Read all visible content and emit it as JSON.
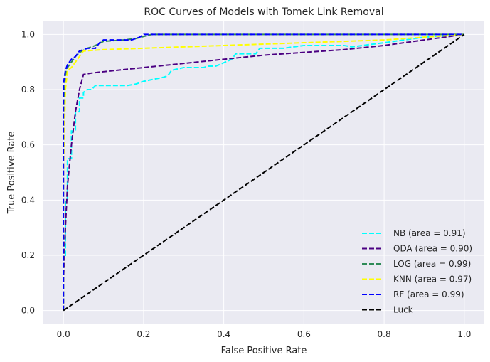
{
  "chart_data": {
    "type": "line",
    "title": "ROC Curves of Models with Tomek Link Removal",
    "xlabel": "False Positive Rate",
    "ylabel": "True Positive Rate",
    "xlim": [
      -0.05,
      1.05
    ],
    "ylim": [
      -0.05,
      1.05
    ],
    "xticks": [
      0.0,
      0.2,
      0.4,
      0.6,
      0.8,
      1.0
    ],
    "yticks": [
      0.0,
      0.2,
      0.4,
      0.6,
      0.8,
      1.0
    ],
    "xtick_labels": [
      "0.0",
      "0.2",
      "0.4",
      "0.6",
      "0.8",
      "1.0"
    ],
    "ytick_labels": [
      "0.0",
      "0.2",
      "0.4",
      "0.6",
      "0.8",
      "1.0"
    ],
    "grid": true,
    "legend_position": "lower-right",
    "series": [
      {
        "name": "NB (area = 0.91)",
        "color": "#00ffff",
        "x": [
          0,
          0,
          0.005,
          0.005,
          0.01,
          0.01,
          0.02,
          0.02,
          0.03,
          0.03,
          0.04,
          0.04,
          0.05,
          0.05,
          0.06,
          0.07,
          0.08,
          0.16,
          0.18,
          0.2,
          0.25,
          0.26,
          0.27,
          0.3,
          0.35,
          0.36,
          0.38,
          0.42,
          0.43,
          0.44,
          0.48,
          0.49,
          0.55,
          0.6,
          0.7,
          0.72,
          0.8,
          0.9,
          1.0
        ],
        "y": [
          0,
          0.2,
          0.2,
          0.4,
          0.4,
          0.55,
          0.55,
          0.65,
          0.65,
          0.72,
          0.72,
          0.77,
          0.77,
          0.79,
          0.8,
          0.8,
          0.815,
          0.815,
          0.82,
          0.83,
          0.845,
          0.85,
          0.87,
          0.88,
          0.88,
          0.885,
          0.885,
          0.91,
          0.93,
          0.93,
          0.93,
          0.95,
          0.95,
          0.96,
          0.96,
          0.955,
          0.97,
          0.99,
          1.0
        ]
      },
      {
        "name": "QDA (area = 0.90)",
        "color": "#4b0082",
        "x": [
          0,
          0,
          0.005,
          0.01,
          0.02,
          0.03,
          0.04,
          0.05,
          0.07,
          0.1,
          0.2,
          0.3,
          0.4,
          0.5,
          0.6,
          0.7,
          0.8,
          0.9,
          1.0
        ],
        "y": [
          0,
          0.1,
          0.3,
          0.45,
          0.6,
          0.72,
          0.8,
          0.855,
          0.86,
          0.865,
          0.88,
          0.895,
          0.91,
          0.925,
          0.935,
          0.945,
          0.96,
          0.98,
          1.0
        ]
      },
      {
        "name": "LOG (area = 0.99)",
        "color": "#2e8b57",
        "x": [
          0,
          0,
          0.005,
          0.01,
          0.02,
          0.03,
          0.04,
          0.06,
          0.08,
          0.1,
          0.15,
          0.18,
          0.22,
          0.3,
          0.5,
          0.7,
          0.9,
          1.0
        ],
        "y": [
          0,
          0.7,
          0.85,
          0.88,
          0.9,
          0.92,
          0.935,
          0.95,
          0.96,
          0.975,
          0.98,
          0.985,
          1.0,
          1.0,
          1.0,
          1.0,
          1.0,
          1.0
        ]
      },
      {
        "name": "KNN (area = 0.97)",
        "color": "#ffff00",
        "x": [
          0,
          0,
          0.005,
          0.01,
          0.02,
          0.03,
          0.04,
          0.05,
          0.1,
          0.2,
          0.3,
          0.4,
          0.5,
          0.6,
          0.7,
          0.8,
          0.9,
          1.0
        ],
        "y": [
          0,
          0.5,
          0.8,
          0.87,
          0.88,
          0.9,
          0.92,
          0.94,
          0.945,
          0.95,
          0.955,
          0.96,
          0.965,
          0.97,
          0.975,
          0.98,
          0.99,
          1.0
        ]
      },
      {
        "name": "RF (area = 0.99)",
        "color": "#0000ff",
        "x": [
          0,
          0,
          0.005,
          0.01,
          0.02,
          0.03,
          0.04,
          0.06,
          0.08,
          0.09,
          0.1,
          0.17,
          0.18,
          0.19,
          0.2,
          0.22,
          0.3,
          0.5,
          0.7,
          0.9,
          1.0
        ],
        "y": [
          0,
          0.82,
          0.87,
          0.89,
          0.91,
          0.92,
          0.94,
          0.95,
          0.95,
          0.97,
          0.98,
          0.98,
          0.985,
          0.99,
          1.0,
          1.0,
          1.0,
          1.0,
          1.0,
          1.0,
          1.0
        ]
      },
      {
        "name": "Luck",
        "color": "#000000",
        "x": [
          0,
          1
        ],
        "y": [
          0,
          1
        ]
      }
    ]
  }
}
